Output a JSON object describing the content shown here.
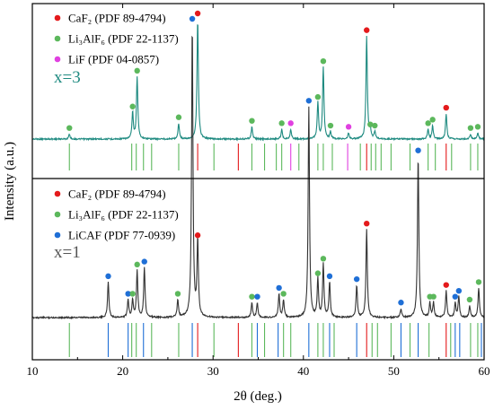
{
  "chart_data": {
    "type": "line",
    "xlabel": "2θ (deg.)",
    "ylabel": "Intensity (a.u.)",
    "xlim": [
      10,
      60
    ],
    "xticks": [
      "10",
      "20",
      "30",
      "40",
      "50",
      "60"
    ],
    "grid": false,
    "colors": {
      "caf2": "#e41a1c",
      "li3alf6": "#5cb85c",
      "lif": "#e040e0",
      "licaf": "#1f6fd6",
      "trace_top": "#1e8a80",
      "trace_bottom": "#333333"
    },
    "panels": [
      {
        "id": "top",
        "label": "x=3",
        "legend": [
          {
            "key": "caf2",
            "text": "CaF₂ (PDF 89-4794)"
          },
          {
            "key": "li3alf6",
            "text": "Li₃AlF₆ (PDF 22-1137)"
          },
          {
            "key": "lif",
            "text": "LiF (PDF 04-0857)"
          }
        ],
        "peaks": [
          {
            "x": 14.1,
            "h": 0.04,
            "phase": "li3alf6"
          },
          {
            "x": 21.1,
            "h": 0.22,
            "phase": "li3alf6"
          },
          {
            "x": 21.6,
            "h": 0.52,
            "phase": "li3alf6"
          },
          {
            "x": 26.2,
            "h": 0.13,
            "phase": "li3alf6"
          },
          {
            "x": 28.3,
            "h": 1.0,
            "phase": "caf2"
          },
          {
            "x": 34.3,
            "h": 0.1,
            "phase": "li3alf6"
          },
          {
            "x": 37.6,
            "h": 0.08,
            "phase": "li3alf6"
          },
          {
            "x": 38.6,
            "h": 0.08,
            "phase": "lif"
          },
          {
            "x": 41.6,
            "h": 0.3,
            "phase": "li3alf6"
          },
          {
            "x": 42.2,
            "h": 0.6,
            "phase": "li3alf6"
          },
          {
            "x": 43.0,
            "h": 0.06,
            "phase": "li3alf6"
          },
          {
            "x": 45.0,
            "h": 0.05,
            "phase": "lif"
          },
          {
            "x": 47.0,
            "h": 0.86,
            "phase": "caf2"
          },
          {
            "x": 47.4,
            "h": 0.07,
            "phase": "li3alf6"
          },
          {
            "x": 47.9,
            "h": 0.06,
            "phase": "li3alf6"
          },
          {
            "x": 53.8,
            "h": 0.08,
            "phase": "li3alf6"
          },
          {
            "x": 54.3,
            "h": 0.11,
            "phase": "li3alf6"
          },
          {
            "x": 55.8,
            "h": 0.21,
            "phase": "caf2"
          },
          {
            "x": 58.5,
            "h": 0.04,
            "phase": "li3alf6"
          },
          {
            "x": 59.3,
            "h": 0.05,
            "phase": "li3alf6"
          }
        ],
        "reference_lines": [
          {
            "x": 14.1,
            "phase": "li3alf6"
          },
          {
            "x": 21.0,
            "phase": "li3alf6"
          },
          {
            "x": 21.5,
            "phase": "li3alf6"
          },
          {
            "x": 22.3,
            "phase": "li3alf6"
          },
          {
            "x": 23.2,
            "phase": "li3alf6"
          },
          {
            "x": 26.2,
            "phase": "li3alf6"
          },
          {
            "x": 28.3,
            "phase": "caf2"
          },
          {
            "x": 30.1,
            "phase": "li3alf6"
          },
          {
            "x": 32.8,
            "phase": "caf2"
          },
          {
            "x": 34.3,
            "phase": "li3alf6"
          },
          {
            "x": 35.7,
            "phase": "li3alf6"
          },
          {
            "x": 37.0,
            "phase": "li3alf6"
          },
          {
            "x": 37.6,
            "phase": "li3alf6"
          },
          {
            "x": 38.6,
            "phase": "lif"
          },
          {
            "x": 39.5,
            "phase": "li3alf6"
          },
          {
            "x": 41.6,
            "phase": "li3alf6"
          },
          {
            "x": 42.2,
            "phase": "li3alf6"
          },
          {
            "x": 43.2,
            "phase": "li3alf6"
          },
          {
            "x": 44.9,
            "phase": "lif"
          },
          {
            "x": 46.3,
            "phase": "li3alf6"
          },
          {
            "x": 47.0,
            "phase": "caf2"
          },
          {
            "x": 47.5,
            "phase": "li3alf6"
          },
          {
            "x": 48.0,
            "phase": "li3alf6"
          },
          {
            "x": 48.6,
            "phase": "li3alf6"
          },
          {
            "x": 49.7,
            "phase": "li3alf6"
          },
          {
            "x": 51.8,
            "phase": "li3alf6"
          },
          {
            "x": 53.8,
            "phase": "li3alf6"
          },
          {
            "x": 54.6,
            "phase": "li3alf6"
          },
          {
            "x": 55.8,
            "phase": "caf2"
          },
          {
            "x": 56.4,
            "phase": "li3alf6"
          },
          {
            "x": 58.5,
            "phase": "li3alf6"
          },
          {
            "x": 59.3,
            "phase": "li3alf6"
          }
        ]
      },
      {
        "id": "bottom",
        "label": "x=1",
        "legend": [
          {
            "key": "caf2",
            "text": "CaF₂ (PDF 89-4794)"
          },
          {
            "key": "li3alf6",
            "text": "Li₃AlF₆ (PDF 22-1137)"
          },
          {
            "key": "licaf",
            "text": "LiCAF (PDF 77-0939)"
          }
        ],
        "peaks": [
          {
            "x": 18.4,
            "h": 0.12,
            "phase": "licaf"
          },
          {
            "x": 20.6,
            "h": 0.06,
            "phase": "licaf"
          },
          {
            "x": 21.1,
            "h": 0.06,
            "phase": "li3alf6"
          },
          {
            "x": 21.6,
            "h": 0.16,
            "phase": "li3alf6"
          },
          {
            "x": 22.4,
            "h": 0.17,
            "phase": "licaf"
          },
          {
            "x": 26.1,
            "h": 0.06,
            "phase": "li3alf6"
          },
          {
            "x": 27.7,
            "h": 1.0,
            "phase": "licaf"
          },
          {
            "x": 28.3,
            "h": 0.26,
            "phase": "caf2"
          },
          {
            "x": 34.3,
            "h": 0.05,
            "phase": "li3alf6"
          },
          {
            "x": 34.9,
            "h": 0.05,
            "phase": "licaf"
          },
          {
            "x": 37.3,
            "h": 0.08,
            "phase": "licaf"
          },
          {
            "x": 37.8,
            "h": 0.06,
            "phase": "li3alf6"
          },
          {
            "x": 40.6,
            "h": 0.72,
            "phase": "licaf"
          },
          {
            "x": 41.6,
            "h": 0.13,
            "phase": "li3alf6"
          },
          {
            "x": 42.2,
            "h": 0.18,
            "phase": "li3alf6"
          },
          {
            "x": 42.9,
            "h": 0.12,
            "phase": "licaf"
          },
          {
            "x": 45.9,
            "h": 0.11,
            "phase": "licaf"
          },
          {
            "x": 47.0,
            "h": 0.3,
            "phase": "caf2"
          },
          {
            "x": 50.8,
            "h": 0.03,
            "phase": "licaf"
          },
          {
            "x": 52.7,
            "h": 0.55,
            "phase": "licaf"
          },
          {
            "x": 54.0,
            "h": 0.05,
            "phase": "li3alf6"
          },
          {
            "x": 54.4,
            "h": 0.05,
            "phase": "li3alf6"
          },
          {
            "x": 55.8,
            "h": 0.09,
            "phase": "caf2"
          },
          {
            "x": 56.8,
            "h": 0.05,
            "phase": "licaf"
          },
          {
            "x": 57.2,
            "h": 0.07,
            "phase": "licaf"
          },
          {
            "x": 58.4,
            "h": 0.04,
            "phase": "li3alf6"
          },
          {
            "x": 59.4,
            "h": 0.1,
            "phase": "li3alf6"
          }
        ],
        "reference_lines": [
          {
            "x": 14.1,
            "phase": "li3alf6"
          },
          {
            "x": 18.4,
            "phase": "licaf"
          },
          {
            "x": 20.6,
            "phase": "licaf"
          },
          {
            "x": 21.0,
            "phase": "li3alf6"
          },
          {
            "x": 21.5,
            "phase": "li3alf6"
          },
          {
            "x": 22.3,
            "phase": "licaf"
          },
          {
            "x": 23.2,
            "phase": "li3alf6"
          },
          {
            "x": 26.2,
            "phase": "li3alf6"
          },
          {
            "x": 27.7,
            "phase": "licaf"
          },
          {
            "x": 28.3,
            "phase": "caf2"
          },
          {
            "x": 30.1,
            "phase": "li3alf6"
          },
          {
            "x": 32.8,
            "phase": "caf2"
          },
          {
            "x": 34.3,
            "phase": "li3alf6"
          },
          {
            "x": 34.9,
            "phase": "licaf"
          },
          {
            "x": 35.7,
            "phase": "li3alf6"
          },
          {
            "x": 37.2,
            "phase": "licaf"
          },
          {
            "x": 37.8,
            "phase": "li3alf6"
          },
          {
            "x": 38.6,
            "phase": "li3alf6"
          },
          {
            "x": 40.6,
            "phase": "licaf"
          },
          {
            "x": 41.6,
            "phase": "li3alf6"
          },
          {
            "x": 42.2,
            "phase": "li3alf6"
          },
          {
            "x": 42.9,
            "phase": "licaf"
          },
          {
            "x": 43.4,
            "phase": "li3alf6"
          },
          {
            "x": 45.9,
            "phase": "licaf"
          },
          {
            "x": 47.0,
            "phase": "caf2"
          },
          {
            "x": 47.6,
            "phase": "li3alf6"
          },
          {
            "x": 48.2,
            "phase": "li3alf6"
          },
          {
            "x": 49.7,
            "phase": "li3alf6"
          },
          {
            "x": 50.8,
            "phase": "licaf"
          },
          {
            "x": 51.8,
            "phase": "li3alf6"
          },
          {
            "x": 52.7,
            "phase": "licaf"
          },
          {
            "x": 53.9,
            "phase": "li3alf6"
          },
          {
            "x": 55.8,
            "phase": "caf2"
          },
          {
            "x": 56.3,
            "phase": "li3alf6"
          },
          {
            "x": 56.8,
            "phase": "licaf"
          },
          {
            "x": 57.3,
            "phase": "licaf"
          },
          {
            "x": 58.5,
            "phase": "li3alf6"
          },
          {
            "x": 59.3,
            "phase": "li3alf6"
          },
          {
            "x": 59.7,
            "phase": "licaf"
          }
        ]
      }
    ]
  }
}
